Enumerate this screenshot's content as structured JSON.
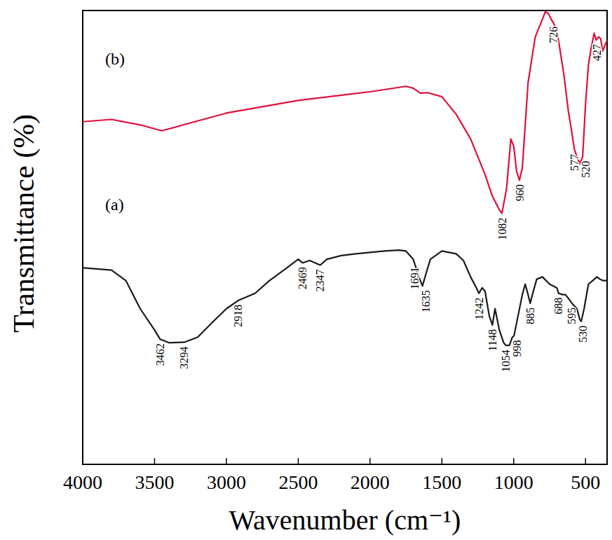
{
  "chart_data": {
    "type": "line",
    "x_label": "Wavenumber (cm⁻¹)",
    "y_label": "Transmittance (%)",
    "xlim": [
      4000,
      350
    ],
    "xticks": [
      4000,
      3500,
      3000,
      2500,
      2000,
      1500,
      1000,
      500
    ],
    "ylim": [
      0,
      100
    ],
    "yticks": [],
    "tick_labels": "x",
    "grid": false,
    "series": [
      {
        "name": "(a)",
        "color": "#1a1a1a",
        "x": [
          4000,
          3800,
          3700,
          3600,
          3500,
          3462,
          3400,
          3294,
          3200,
          3100,
          3000,
          2918,
          2800,
          2700,
          2600,
          2500,
          2469,
          2420,
          2347,
          2300,
          2200,
          2100,
          2000,
          1900,
          1800,
          1750,
          1700,
          1691,
          1660,
          1635,
          1610,
          1580,
          1500,
          1450,
          1400,
          1350,
          1300,
          1260,
          1242,
          1220,
          1200,
          1170,
          1148,
          1130,
          1100,
          1070,
          1054,
          1030,
          1010,
          998,
          970,
          940,
          920,
          900,
          885,
          870,
          840,
          800,
          750,
          700,
          688,
          660,
          640,
          620,
          595,
          560,
          540,
          530,
          510,
          480,
          450,
          420,
          400,
          380,
          350
        ],
        "values": [
          43.3,
          42.8,
          40.5,
          34.3,
          29.6,
          27.6,
          26.8,
          26.9,
          28.0,
          31.2,
          34.3,
          36.1,
          37.7,
          40.5,
          42.8,
          45.2,
          44.4,
          44.9,
          43.9,
          45.2,
          46.0,
          46.4,
          46.7,
          47.0,
          47.2,
          47.0,
          45.2,
          44.4,
          41.3,
          39.3,
          42.1,
          45.2,
          47.0,
          46.7,
          46.4,
          44.9,
          41.3,
          38.9,
          37.7,
          38.9,
          38.2,
          32.7,
          30.7,
          34.3,
          29.6,
          26.8,
          26.2,
          26.2,
          28.0,
          28.3,
          32.7,
          37.4,
          39.7,
          37.4,
          35.5,
          37.4,
          40.8,
          41.3,
          39.7,
          38.9,
          37.7,
          37.4,
          37.4,
          36.6,
          35.5,
          34.3,
          31.9,
          31.5,
          34.3,
          39.7,
          40.5,
          41.3,
          40.8,
          40.5,
          40.5
        ]
      },
      {
        "name": "(b)",
        "color": "#e0103c",
        "x": [
          4000,
          3800,
          3600,
          3450,
          3300,
          3000,
          2500,
          2000,
          1750,
          1700,
          1650,
          1600,
          1500,
          1400,
          1300,
          1200,
          1150,
          1100,
          1082,
          1050,
          1020,
          1000,
          980,
          960,
          940,
          900,
          850,
          800,
          780,
          760,
          740,
          726,
          700,
          650,
          620,
          600,
          577,
          560,
          540,
          520,
          500,
          480,
          460,
          440,
          427,
          410,
          395,
          380,
          350
        ],
        "values": [
          75.5,
          76.0,
          74.8,
          73.5,
          74.8,
          77.4,
          80.2,
          82.1,
          83.3,
          82.9,
          81.8,
          81.9,
          81.0,
          77.1,
          71.7,
          63.9,
          59.2,
          56.1,
          55.3,
          60.7,
          71.7,
          70.1,
          64.6,
          62.6,
          65.4,
          84.1,
          94.2,
          98.1,
          99.7,
          99.4,
          98.1,
          97.4,
          95.8,
          85.7,
          77.9,
          74.0,
          69.3,
          67.8,
          66.2,
          67.8,
          79.4,
          88.0,
          91.9,
          95.0,
          93.5,
          94.2,
          93.8,
          91.1,
          93.5
        ]
      }
    ],
    "annotations": [
      {
        "text": "3462",
        "x": 3462,
        "series": 0
      },
      {
        "text": "3294",
        "x": 3294,
        "series": 0
      },
      {
        "text": "2918",
        "x": 2918,
        "series": 0
      },
      {
        "text": "2469",
        "x": 2469,
        "series": 0
      },
      {
        "text": "2347",
        "x": 2347,
        "series": 0
      },
      {
        "text": "1691",
        "x": 1691,
        "series": 0
      },
      {
        "text": "1635",
        "x": 1635,
        "series": 0
      },
      {
        "text": "1242",
        "x": 1242,
        "series": 0
      },
      {
        "text": "1148",
        "x": 1148,
        "series": 0
      },
      {
        "text": "1054",
        "x": 1054,
        "series": 0
      },
      {
        "text": "998",
        "x": 998,
        "series": 0
      },
      {
        "text": "885",
        "x": 885,
        "series": 0
      },
      {
        "text": "688",
        "x": 688,
        "series": 0
      },
      {
        "text": "595",
        "x": 595,
        "series": 0
      },
      {
        "text": "530",
        "x": 530,
        "series": 0
      },
      {
        "text": "1082",
        "x": 1082,
        "series": 1
      },
      {
        "text": "960",
        "x": 960,
        "series": 1
      },
      {
        "text": "726",
        "x": 726,
        "series": 1
      },
      {
        "text": "577",
        "x": 577,
        "series": 1
      },
      {
        "text": "520",
        "x": 520,
        "series": 1
      },
      {
        "text": "427",
        "x": 427,
        "series": 1
      }
    ]
  }
}
